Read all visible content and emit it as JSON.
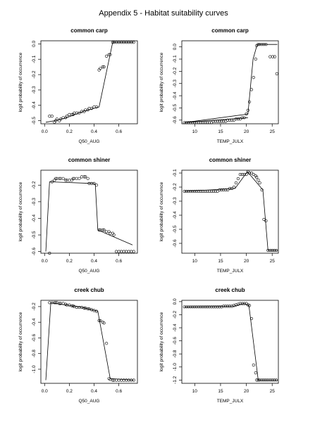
{
  "page_title": "Appendix 5 - Habitat suitability curves",
  "chart_data": [
    {
      "type": "scatter",
      "title": "common carp",
      "xlabel": "Q50_AUG",
      "ylabel": "logit probability of occurrence",
      "xlim": [
        -0.03,
        0.75
      ],
      "ylim": [
        -0.52,
        0.02
      ],
      "xticks": [
        "0.0",
        "0.2",
        "0.4",
        "0.6"
      ],
      "yticks": [
        "-0.5",
        "-0.4",
        "-0.3",
        "-0.2",
        "-0.1",
        "0.0"
      ],
      "series": [
        {
          "kind": "points",
          "x": [
            0.04,
            0.06,
            0.08,
            0.09,
            0.1,
            0.12,
            0.13,
            0.15,
            0.17,
            0.18,
            0.2,
            0.22,
            0.23,
            0.24,
            0.26,
            0.28,
            0.3,
            0.32,
            0.33,
            0.35,
            0.36,
            0.38,
            0.4,
            0.42,
            0.44,
            0.45,
            0.47,
            0.48,
            0.5,
            0.52,
            0.53,
            0.55,
            0.56,
            0.58,
            0.6,
            0.62,
            0.64,
            0.66,
            0.68,
            0.7,
            0.72
          ],
          "y": [
            -0.47,
            -0.47,
            -0.51,
            -0.5,
            -0.49,
            -0.5,
            -0.49,
            -0.48,
            -0.48,
            -0.47,
            -0.46,
            -0.46,
            -0.46,
            -0.45,
            -0.45,
            -0.45,
            -0.44,
            -0.44,
            -0.43,
            -0.43,
            -0.42,
            -0.42,
            -0.41,
            -0.41,
            -0.17,
            -0.16,
            -0.15,
            -0.15,
            -0.08,
            -0.07,
            -0.07,
            0.01,
            0.01,
            0.01,
            0.01,
            0.01,
            0.01,
            0.01,
            0.01,
            0.01,
            0.01
          ]
        },
        {
          "kind": "line",
          "x": [
            0.01,
            0.08,
            0.18,
            0.31,
            0.44,
            0.55,
            0.72
          ],
          "y": [
            -0.51,
            -0.5,
            -0.48,
            -0.44,
            -0.41,
            0.01,
            0.01
          ]
        }
      ]
    },
    {
      "type": "scatter",
      "title": "common carp",
      "xlabel": "TEMP_JULX",
      "ylabel": "logit probability of occurrence",
      "xlim": [
        7.5,
        26.2
      ],
      "ylim": [
        -0.63,
        0.05
      ],
      "xticks": [
        "10",
        "15",
        "20",
        "25"
      ],
      "yticks": [
        "-0.6",
        "-0.5",
        "-0.4",
        "-0.3",
        "-0.2",
        "-0.1",
        "0.0"
      ],
      "series": [
        {
          "kind": "points",
          "x": [
            8,
            8.4,
            8.8,
            9.2,
            9.6,
            10,
            10.4,
            10.8,
            11.2,
            11.6,
            12,
            12.4,
            12.8,
            13.2,
            13.6,
            14,
            14.4,
            14.8,
            15.2,
            15.6,
            16,
            16.4,
            16.8,
            17.2,
            17.6,
            18,
            18.4,
            18.8,
            19.2,
            19.6,
            20,
            20.3,
            20.6,
            21,
            21.4,
            21.8,
            22,
            22.3,
            22.6,
            23,
            23.4,
            23.8,
            24.6,
            25.1,
            25.5,
            25.9
          ],
          "y": [
            -0.62,
            -0.62,
            -0.62,
            -0.62,
            -0.62,
            -0.62,
            -0.62,
            -0.62,
            -0.62,
            -0.62,
            -0.62,
            -0.62,
            -0.62,
            -0.62,
            -0.61,
            -0.61,
            -0.61,
            -0.61,
            -0.61,
            -0.61,
            -0.61,
            -0.6,
            -0.6,
            -0.6,
            -0.6,
            -0.59,
            -0.59,
            -0.59,
            -0.58,
            -0.58,
            -0.55,
            -0.52,
            -0.45,
            -0.35,
            -0.25,
            -0.1,
            0.01,
            0.02,
            0.02,
            0.02,
            0.02,
            0.02,
            -0.08,
            -0.08,
            -0.08,
            -0.22
          ]
        },
        {
          "kind": "line",
          "x": [
            8,
            20.3,
            21.3,
            22.1,
            26
          ],
          "y": [
            -0.62,
            -0.55,
            -0.1,
            0.02,
            0.02
          ]
        },
        {
          "kind": "line",
          "x": [
            8,
            20.3
          ],
          "y": [
            -0.62,
            -0.58
          ]
        }
      ]
    },
    {
      "type": "scatter",
      "title": "common shiner",
      "xlabel": "Q50_AUG",
      "ylabel": "logit probability of occurrence",
      "xlim": [
        -0.03,
        0.75
      ],
      "ylim": [
        -0.61,
        -0.11
      ],
      "xticks": [
        "0.0",
        "0.2",
        "0.4",
        "0.6"
      ],
      "yticks": [
        "-0.6",
        "-0.5",
        "-0.4",
        "-0.3",
        "-0.2"
      ],
      "series": [
        {
          "kind": "points",
          "x": [
            0.04,
            0.06,
            0.08,
            0.09,
            0.1,
            0.12,
            0.13,
            0.15,
            0.17,
            0.18,
            0.2,
            0.22,
            0.23,
            0.24,
            0.26,
            0.28,
            0.3,
            0.32,
            0.33,
            0.35,
            0.36,
            0.38,
            0.4,
            0.42,
            0.44,
            0.45,
            0.47,
            0.48,
            0.5,
            0.52,
            0.53,
            0.55,
            0.56,
            0.58,
            0.6,
            0.62,
            0.64,
            0.66,
            0.68,
            0.7,
            0.72
          ],
          "y": [
            -0.61,
            -0.18,
            -0.17,
            -0.16,
            -0.16,
            -0.16,
            -0.16,
            -0.16,
            -0.17,
            -0.17,
            -0.17,
            -0.17,
            -0.16,
            -0.16,
            -0.16,
            -0.16,
            -0.15,
            -0.15,
            -0.15,
            -0.16,
            -0.19,
            -0.19,
            -0.19,
            -0.2,
            -0.47,
            -0.47,
            -0.47,
            -0.47,
            -0.48,
            -0.48,
            -0.49,
            -0.49,
            -0.5,
            -0.6,
            -0.6,
            -0.6,
            -0.6,
            -0.6,
            -0.6,
            -0.6,
            -0.6
          ]
        },
        {
          "kind": "line",
          "x": [
            0.01,
            0.04,
            0.4,
            0.41,
            0.43,
            0.71
          ],
          "y": [
            -0.6,
            -0.18,
            -0.19,
            -0.2,
            -0.47,
            -0.56
          ]
        }
      ]
    },
    {
      "type": "scatter",
      "title": "common shiner",
      "xlabel": "TEMP_JULX",
      "ylabel": "logit probability of occurrence",
      "xlim": [
        7.5,
        26.2
      ],
      "ylim": [
        -0.67,
        -0.08
      ],
      "xticks": [
        "10",
        "15",
        "20",
        "25"
      ],
      "yticks": [
        "-0.6",
        "-0.5",
        "-0.4",
        "-0.3",
        "-0.2",
        "-0.1"
      ],
      "series": [
        {
          "kind": "points",
          "x": [
            8,
            8.4,
            8.8,
            9.2,
            9.6,
            10,
            10.4,
            10.8,
            11.2,
            11.6,
            12,
            12.4,
            12.8,
            13.2,
            13.6,
            14,
            14.4,
            14.8,
            15.2,
            15.6,
            16,
            16.4,
            16.8,
            17.2,
            17.6,
            18,
            18.4,
            18.8,
            19.2,
            19.6,
            20,
            20.3,
            20.6,
            21,
            21.4,
            21.8,
            22,
            22.3,
            22.6,
            23,
            23.4,
            23.8,
            24.2,
            24.6,
            25,
            25.4,
            25.8
          ],
          "y": [
            -0.23,
            -0.23,
            -0.23,
            -0.23,
            -0.23,
            -0.23,
            -0.23,
            -0.23,
            -0.23,
            -0.23,
            -0.23,
            -0.23,
            -0.23,
            -0.23,
            -0.23,
            -0.23,
            -0.23,
            -0.22,
            -0.22,
            -0.22,
            -0.22,
            -0.22,
            -0.21,
            -0.21,
            -0.2,
            -0.17,
            -0.14,
            -0.11,
            -0.11,
            -0.11,
            -0.11,
            -0.09,
            -0.1,
            -0.1,
            -0.11,
            -0.12,
            -0.13,
            -0.15,
            -0.17,
            -0.22,
            -0.43,
            -0.44,
            -0.65,
            -0.65,
            -0.65,
            -0.65,
            -0.65
          ]
        },
        {
          "kind": "line",
          "x": [
            8,
            17.8,
            20.2,
            23.2,
            24.2,
            26
          ],
          "y": [
            -0.23,
            -0.21,
            -0.09,
            -0.22,
            -0.65,
            -0.65
          ]
        }
      ]
    },
    {
      "type": "scatter",
      "title": "creek chub",
      "xlabel": "Q50_AUG",
      "ylabel": "logit probability of occurrence",
      "xlim": [
        -0.03,
        0.75
      ],
      "ylim": [
        -1.18,
        -0.12
      ],
      "xticks": [
        "0.0",
        "0.2",
        "0.4",
        "0.6"
      ],
      "yticks": [
        "-1.0",
        "-0.8",
        "-0.6",
        "-0.4",
        "-0.2"
      ],
      "series": [
        {
          "kind": "points",
          "x": [
            0.04,
            0.06,
            0.08,
            0.09,
            0.1,
            0.12,
            0.13,
            0.15,
            0.17,
            0.18,
            0.2,
            0.22,
            0.23,
            0.24,
            0.26,
            0.28,
            0.3,
            0.32,
            0.33,
            0.35,
            0.36,
            0.38,
            0.4,
            0.42,
            0.44,
            0.45,
            0.47,
            0.48,
            0.5,
            0.52,
            0.53,
            0.55,
            0.56,
            0.58,
            0.6,
            0.62,
            0.64,
            0.66,
            0.68,
            0.7,
            0.72
          ],
          "y": [
            -0.15,
            -0.15,
            -0.15,
            -0.15,
            -0.15,
            -0.16,
            -0.16,
            -0.16,
            -0.17,
            -0.18,
            -0.18,
            -0.19,
            -0.19,
            -0.2,
            -0.21,
            -0.21,
            -0.21,
            -0.22,
            -0.22,
            -0.23,
            -0.23,
            -0.24,
            -0.25,
            -0.26,
            -0.38,
            -0.38,
            -0.4,
            -0.41,
            -0.67,
            -1.12,
            -1.13,
            -1.14,
            -1.14,
            -1.14,
            -1.14,
            -1.14,
            -1.14,
            -1.14,
            -1.14,
            -1.14,
            -1.14
          ]
        },
        {
          "kind": "line",
          "x": [
            0.01,
            0.05,
            0.3,
            0.43,
            0.53,
            0.72
          ],
          "y": [
            -1.14,
            -0.15,
            -0.21,
            -0.26,
            -1.12,
            -1.14
          ]
        }
      ]
    },
    {
      "type": "scatter",
      "title": "creek chub",
      "xlabel": "TEMP_JULX",
      "ylabel": "logit probability of occurrence",
      "xlim": [
        7.5,
        26.2
      ],
      "ylim": [
        -1.25,
        0.02
      ],
      "xticks": [
        "10",
        "15",
        "20",
        "25"
      ],
      "yticks": [
        "-1.2",
        "-1.0",
        "-0.8",
        "-0.6",
        "-0.4",
        "-0.2",
        "0.0"
      ],
      "series": [
        {
          "kind": "points",
          "x": [
            8,
            8.4,
            8.8,
            9.2,
            9.6,
            10,
            10.4,
            10.8,
            11.2,
            11.6,
            12,
            12.4,
            12.8,
            13.2,
            13.6,
            14,
            14.4,
            14.8,
            15.2,
            15.6,
            16,
            16.4,
            16.8,
            17.2,
            17.6,
            18,
            18.4,
            18.8,
            19.2,
            19.6,
            20,
            20.3,
            20.6,
            21,
            21.4,
            21.8,
            22,
            22.3,
            22.6,
            23,
            23.4,
            23.8,
            24.2,
            24.6,
            25,
            25.4,
            25.8
          ],
          "y": [
            -0.08,
            -0.08,
            -0.08,
            -0.08,
            -0.08,
            -0.08,
            -0.08,
            -0.08,
            -0.08,
            -0.08,
            -0.08,
            -0.08,
            -0.08,
            -0.08,
            -0.08,
            -0.08,
            -0.08,
            -0.08,
            -0.08,
            -0.07,
            -0.07,
            -0.07,
            -0.07,
            -0.07,
            -0.06,
            -0.05,
            -0.04,
            -0.03,
            -0.03,
            -0.03,
            -0.03,
            -0.05,
            -0.06,
            -0.26,
            -0.97,
            -1.09,
            -1.2,
            -1.2,
            -1.2,
            -1.2,
            -1.2,
            -1.2,
            -1.2,
            -1.2,
            -1.2,
            -1.2,
            -1.2
          ]
        },
        {
          "kind": "line",
          "x": [
            8,
            17.5,
            19.5,
            20.5,
            22.3,
            26
          ],
          "y": [
            -0.08,
            -0.07,
            -0.03,
            -0.06,
            -1.2,
            -1.2
          ]
        }
      ]
    }
  ]
}
